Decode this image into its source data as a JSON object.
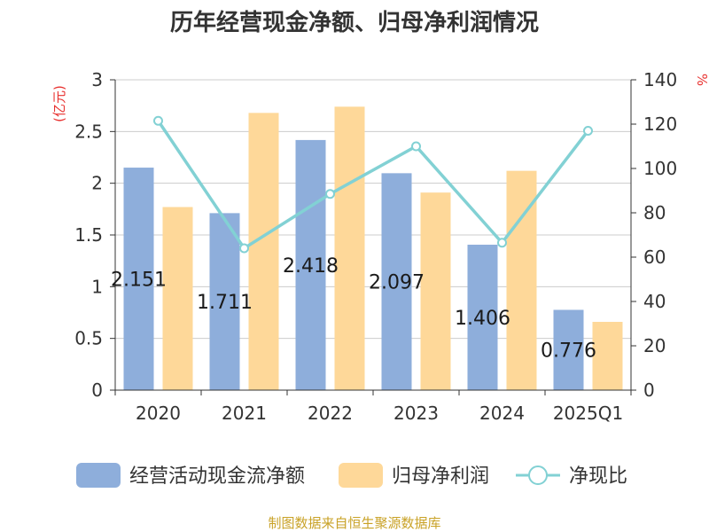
{
  "chart_data": {
    "type": "bar",
    "title": "历年经营现金净额、归母净利润情况",
    "categories": [
      "2020",
      "2021",
      "2022",
      "2023",
      "2024",
      "2025Q1"
    ],
    "left_axis": {
      "unit": "(亿元)",
      "ylim": [
        0,
        3
      ],
      "ticks": [
        "0",
        "0.5",
        "1",
        "1.5",
        "2",
        "2.5",
        "3"
      ]
    },
    "right_axis": {
      "unit": "%",
      "ylim": [
        0,
        140
      ],
      "ticks": [
        "0",
        "20",
        "40",
        "60",
        "80",
        "100",
        "120",
        "140"
      ]
    },
    "grid": true,
    "legend_position": "bottom",
    "series": [
      {
        "name": "经营活动现金流净额",
        "type": "bar",
        "axis": "left",
        "color": "#8eaedb",
        "values": [
          2.151,
          1.711,
          2.418,
          2.097,
          1.406,
          0.776
        ],
        "labels": [
          "2.151",
          "1.711",
          "2.418",
          "2.097",
          "1.406",
          "0.776"
        ]
      },
      {
        "name": "归母净利润",
        "type": "bar",
        "axis": "left",
        "color": "#fed899",
        "values": [
          1.77,
          2.68,
          2.74,
          1.91,
          2.12,
          0.66
        ]
      },
      {
        "name": "净现比",
        "type": "line",
        "axis": "right",
        "color": "#82d1d4",
        "values": [
          121.5,
          64,
          88.5,
          110,
          66.5,
          117
        ]
      }
    ]
  },
  "source_text": "制图数据来自恒生聚源数据库"
}
